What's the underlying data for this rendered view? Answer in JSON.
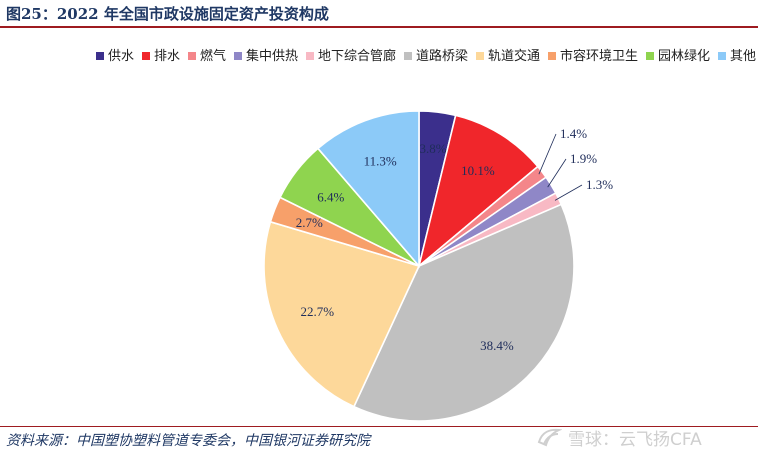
{
  "figure": {
    "title": "图25：2022 年全国市政设施固定资产投资构成",
    "source": "资料来源：中国塑协塑料管道专委会，中国银河证券研究院",
    "watermark": "雪球：云飞扬CFA",
    "watermark_icon": "snowball-logo-icon"
  },
  "chart_data": {
    "type": "pie",
    "unit": "%",
    "legend_position": "top",
    "slices": [
      {
        "name": "供水",
        "value": 3.8,
        "label": "3.8%",
        "color": "#3b2f8c"
      },
      {
        "name": "排水",
        "value": 10.1,
        "label": "10.1%",
        "color": "#f0262b"
      },
      {
        "name": "燃气",
        "value": 1.4,
        "label": "1.4%",
        "color": "#f4868a"
      },
      {
        "name": "集中供热",
        "value": 1.9,
        "label": "1.9%",
        "color": "#8f87c7"
      },
      {
        "name": "地下综合管廊",
        "value": 1.3,
        "label": "1.3%",
        "color": "#f8b9c4"
      },
      {
        "name": "道路桥梁",
        "value": 38.4,
        "label": "38.4%",
        "color": "#c0c0c0"
      },
      {
        "name": "轨道交通",
        "value": 22.7,
        "label": "22.7%",
        "color": "#fdd89a"
      },
      {
        "name": "市容环境卫生",
        "value": 2.7,
        "label": "2.7%",
        "color": "#f7a06a"
      },
      {
        "name": "园林绿化",
        "value": 6.4,
        "label": "6.4%",
        "color": "#8fd44f"
      },
      {
        "name": "其他",
        "value": 11.3,
        "label": "11.3%",
        "color": "#8ccaf8"
      }
    ]
  }
}
